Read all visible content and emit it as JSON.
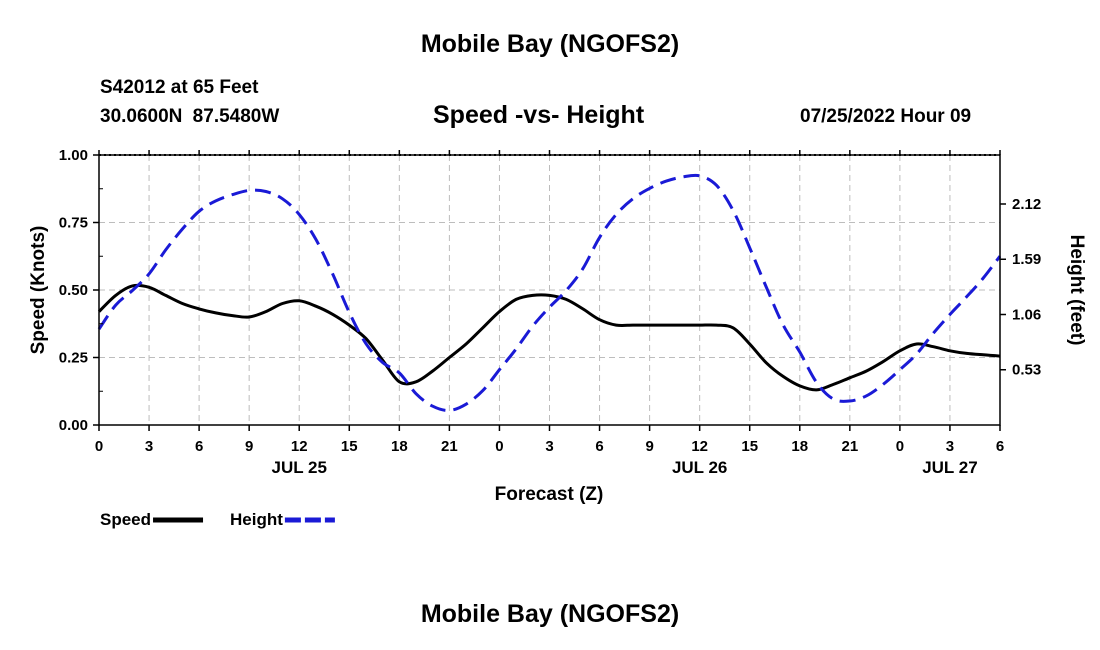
{
  "header": {
    "title": "Mobile Bay (NGOFS2)",
    "station": "S42012 at 65 Feet",
    "coordinates": "30.0600N  87.5480W",
    "datetime": "07/25/2022 Hour 09"
  },
  "footer": {
    "title": "Mobile Bay (NGOFS2)"
  },
  "chart_data": {
    "type": "line",
    "title": "Speed -vs- Height",
    "xlabel": "Forecast (Z)",
    "ylabel": "Speed (Knots)",
    "y2label": "Height (feet)",
    "x_range": [
      0,
      54
    ],
    "x_ticks": [
      0,
      3,
      6,
      9,
      12,
      15,
      18,
      21,
      24,
      27,
      30,
      33,
      36,
      39,
      42,
      45,
      48,
      51,
      54
    ],
    "x_tick_labels": [
      "0",
      "3",
      "6",
      "9",
      "12",
      "15",
      "18",
      "21",
      "0",
      "3",
      "6",
      "9",
      "12",
      "15",
      "18",
      "21",
      "0",
      "3",
      "6"
    ],
    "date_labels": [
      {
        "x": 12,
        "text": "JUL 25"
      },
      {
        "x": 36,
        "text": "JUL 26"
      },
      {
        "x": 51,
        "text": "JUL 27"
      }
    ],
    "ylim": [
      0,
      1.0
    ],
    "y_ticks": [
      0,
      0.25,
      0.5,
      0.75,
      1.0
    ],
    "y_tick_labels": [
      "0.00",
      "0.25",
      "0.50",
      "0.75",
      "1.00"
    ],
    "y2lim": [
      0.0,
      2.59
    ],
    "y2_ticks": [
      0.53,
      1.06,
      1.59,
      2.12
    ],
    "y2_tick_labels": [
      "0.53",
      "1.06",
      "1.59",
      "2.12"
    ],
    "grid": true,
    "legend_position": "bottom-left",
    "series": [
      {
        "name": "Speed",
        "axis": "left",
        "color": "#000000",
        "style": "solid",
        "x": [
          0,
          1,
          2,
          3,
          4,
          5,
          6,
          7,
          8,
          9,
          10,
          11,
          12,
          13,
          14,
          15,
          16,
          17,
          18,
          19,
          20,
          21,
          22,
          23,
          24,
          25,
          26,
          27,
          28,
          29,
          30,
          31,
          32,
          33,
          34,
          35,
          36,
          37,
          38,
          39,
          40,
          41,
          42,
          43,
          44,
          45,
          46,
          47,
          48,
          49,
          50,
          51,
          52,
          53,
          54
        ],
        "values": [
          0.42,
          0.48,
          0.515,
          0.51,
          0.48,
          0.45,
          0.43,
          0.415,
          0.405,
          0.4,
          0.42,
          0.45,
          0.46,
          0.44,
          0.41,
          0.37,
          0.32,
          0.24,
          0.16,
          0.16,
          0.2,
          0.25,
          0.3,
          0.36,
          0.42,
          0.465,
          0.48,
          0.48,
          0.465,
          0.43,
          0.39,
          0.37,
          0.37,
          0.37,
          0.37,
          0.37,
          0.37,
          0.37,
          0.36,
          0.3,
          0.23,
          0.18,
          0.145,
          0.13,
          0.15,
          0.175,
          0.2,
          0.235,
          0.275,
          0.3,
          0.29,
          0.275,
          0.265,
          0.26,
          0.255
        ]
      },
      {
        "name": "Height",
        "axis": "right",
        "color": "#1a1ad6",
        "style": "dashed",
        "x": [
          0,
          1,
          2,
          3,
          4,
          5,
          6,
          7,
          8,
          9,
          10,
          11,
          12,
          13,
          14,
          15,
          16,
          17,
          18,
          19,
          20,
          21,
          22,
          23,
          24,
          25,
          26,
          27,
          28,
          29,
          30,
          31,
          32,
          33,
          34,
          35,
          36,
          37,
          38,
          39,
          40,
          41,
          42,
          43,
          44,
          45,
          46,
          47,
          48,
          49,
          50,
          51,
          52,
          53,
          54
        ],
        "values": [
          0.92,
          1.15,
          1.29,
          1.45,
          1.68,
          1.88,
          2.05,
          2.15,
          2.21,
          2.25,
          2.24,
          2.17,
          2.02,
          1.78,
          1.45,
          1.08,
          0.78,
          0.6,
          0.5,
          0.3,
          0.18,
          0.14,
          0.2,
          0.33,
          0.53,
          0.73,
          0.95,
          1.13,
          1.29,
          1.5,
          1.8,
          2.02,
          2.17,
          2.27,
          2.34,
          2.38,
          2.39,
          2.3,
          2.06,
          1.7,
          1.32,
          0.96,
          0.7,
          0.41,
          0.25,
          0.23,
          0.28,
          0.39,
          0.53,
          0.68,
          0.88,
          1.06,
          1.23,
          1.41,
          1.62
        ]
      }
    ]
  }
}
